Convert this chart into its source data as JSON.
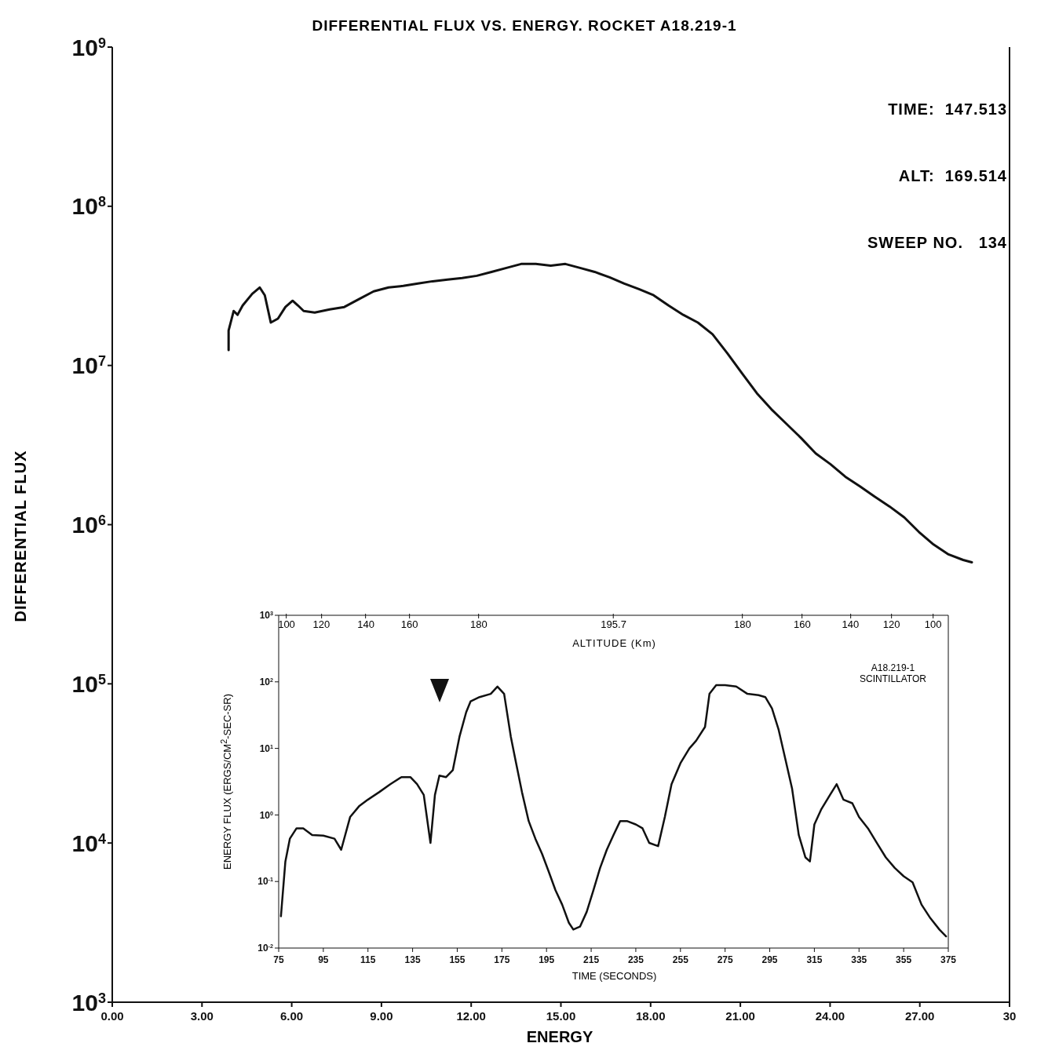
{
  "chart_data": [
    {
      "type": "line",
      "title": "DIFFERENTIAL FLUX VS. ENERGY. ROCKET A18.219-1",
      "xlabel": "ENERGY",
      "ylabel": "DIFFERENTIAL FLUX",
      "log": "y",
      "marker": "none",
      "line_style": "solid",
      "xlim": [
        0,
        30
      ],
      "xticks": [
        {
          "value": 0,
          "label": "0.00"
        },
        {
          "value": 3,
          "label": "3.00"
        },
        {
          "value": 6,
          "label": "6.00"
        },
        {
          "value": 9,
          "label": "9.00"
        },
        {
          "value": 12,
          "label": "12.00"
        },
        {
          "value": 15,
          "label": "15.00"
        },
        {
          "value": 18,
          "label": "18.00"
        },
        {
          "value": 21,
          "label": "21.00"
        },
        {
          "value": 24,
          "label": "24.00"
        },
        {
          "value": 27,
          "label": "27.00"
        },
        {
          "value": 30,
          "label": "30"
        }
      ],
      "ylim": [
        1000,
        1000000000
      ],
      "yticks": [
        {
          "value": 1000,
          "label": "10$^{3}$"
        },
        {
          "value": 10000,
          "label": "10$^{4}$"
        },
        {
          "value": 100000,
          "label": "10$^{5}$"
        },
        {
          "value": 1000000,
          "label": "10$^{6}$"
        },
        {
          "value": 10000000,
          "label": "10$^{7}$"
        },
        {
          "value": 100000000,
          "label": "10$^{8}$"
        },
        {
          "value": 1000000000,
          "label": "10$^{9}$"
        }
      ],
      "annotations": [
        "TIME:  147.513",
        "ALT:  169.514",
        "SWEEP NO.   134"
      ],
      "series": [
        {
          "color": "#111111",
          "x": [
            3.89,
            3.89,
            4.06,
            4.19,
            4.36,
            4.68,
            4.93,
            5.1,
            5.3,
            5.54,
            5.79,
            6.03,
            6.21,
            6.4,
            6.77,
            7.27,
            7.76,
            8.25,
            8.74,
            9.24,
            9.73,
            10.22,
            10.71,
            11.21,
            11.7,
            12.19,
            12.68,
            13.18,
            13.67,
            14.16,
            14.66,
            15.15,
            15.64,
            16.13,
            16.63,
            17.12,
            17.61,
            18.1,
            18.6,
            19.09,
            19.58,
            20.07,
            20.57,
            21.06,
            21.55,
            22.04,
            22.54,
            23.03,
            23.52,
            24.01,
            24.51,
            25.0,
            25.49,
            25.99,
            26.48,
            26.97,
            27.46,
            27.96,
            28.45,
            28.74
          ],
          "values": [
            12500000,
            16600000,
            22000000,
            20800000,
            23800000,
            28200000,
            30900000,
            27600000,
            18600000,
            19700000,
            23300000,
            25500000,
            23800000,
            22000000,
            21500000,
            22500000,
            23300000,
            26100000,
            29200000,
            30900000,
            31600000,
            32700000,
            33800000,
            34600000,
            35400000,
            36600000,
            38700000,
            41000000,
            43400000,
            43400000,
            42400000,
            43400000,
            41000000,
            38700000,
            35800000,
            32700000,
            30200000,
            27600000,
            23800000,
            20800000,
            18600000,
            15700000,
            11900000,
            8900000,
            6700000,
            5300000,
            4300000,
            3500000,
            2800000,
            2400000,
            2000000,
            1740000,
            1500000,
            1300000,
            1110000,
            900000,
            750000,
            650000,
            600000,
            580000
          ]
        }
      ]
    },
    {
      "type": "line",
      "xlabel": "TIME (SECONDS)",
      "ylabel": "ENERGY FLUX (ERGS/CM$^{2}$-SEC-SR)",
      "x2label": "ALTITUDE (Km)",
      "log": "y",
      "marker": "none",
      "line_style": "solid",
      "xlim": [
        75,
        375
      ],
      "xticks": [
        75,
        95,
        115,
        135,
        155,
        175,
        195,
        215,
        235,
        255,
        275,
        295,
        315,
        335,
        355,
        375
      ],
      "ylim": [
        0.01,
        1000
      ],
      "yticks": [
        {
          "value": 0.01,
          "label": "10$^{-2}$"
        },
        {
          "value": 0.1,
          "label": "10$^{-1}$"
        },
        {
          "value": 1,
          "label": "10$^{0}$"
        },
        {
          "value": 10,
          "label": "10$^{1}$"
        },
        {
          "value": 100,
          "label": "10$^{2}$"
        },
        {
          "value": 1000,
          "label": "10$^{3}$"
        }
      ],
      "annotations": [
        "A18.219-1\nSCINTILLATOR",
        "100",
        "120",
        "140",
        "160",
        "180",
        "195.7",
        "180",
        "160",
        "140",
        "120",
        "100"
      ],
      "series": [
        {
          "color": "#111111",
          "x": [
            76,
            78,
            80,
            83,
            86,
            90,
            95,
            100,
            103,
            107,
            111,
            115,
            120,
            125,
            130,
            134,
            137,
            140,
            143,
            145,
            147,
            150,
            153,
            156,
            159,
            161,
            165,
            170,
            173,
            176,
            179,
            181,
            184,
            187,
            190,
            193,
            196,
            199,
            202,
            205,
            207,
            210,
            213,
            216,
            219,
            222,
            225,
            228,
            231,
            235,
            238,
            241,
            245,
            248,
            251,
            255,
            259,
            262,
            266,
            268,
            271,
            275,
            280,
            285,
            290,
            293,
            296,
            299,
            302,
            305,
            308,
            311,
            313,
            315,
            318,
            322,
            325,
            328,
            332,
            335,
            339,
            343,
            347,
            351,
            355,
            359,
            363,
            367,
            371,
            374
          ],
          "values": [
            0.03,
            0.2,
            0.44,
            0.63,
            0.63,
            0.5,
            0.49,
            0.44,
            0.3,
            0.93,
            1.35,
            1.7,
            2.2,
            2.9,
            3.7,
            3.7,
            2.9,
            2.0,
            0.38,
            2.0,
            3.9,
            3.7,
            4.7,
            15,
            35,
            51,
            59,
            66,
            85,
            66,
            15,
            6.9,
            2.2,
            0.81,
            0.44,
            0.26,
            0.14,
            0.074,
            0.045,
            0.024,
            0.019,
            0.021,
            0.035,
            0.074,
            0.16,
            0.3,
            0.5,
            0.81,
            0.81,
            0.72,
            0.63,
            0.38,
            0.34,
            0.93,
            2.9,
            6,
            10,
            13,
            21,
            66,
            89,
            89,
            85,
            66,
            63,
            59,
            40,
            19,
            6.9,
            2.5,
            0.5,
            0.23,
            0.2,
            0.72,
            1.2,
            2.0,
            2.9,
            1.7,
            1.5,
            0.93,
            0.63,
            0.38,
            0.23,
            0.16,
            0.12,
            0.097,
            0.045,
            0.028,
            0.019,
            0.015
          ]
        }
      ]
    }
  ]
}
